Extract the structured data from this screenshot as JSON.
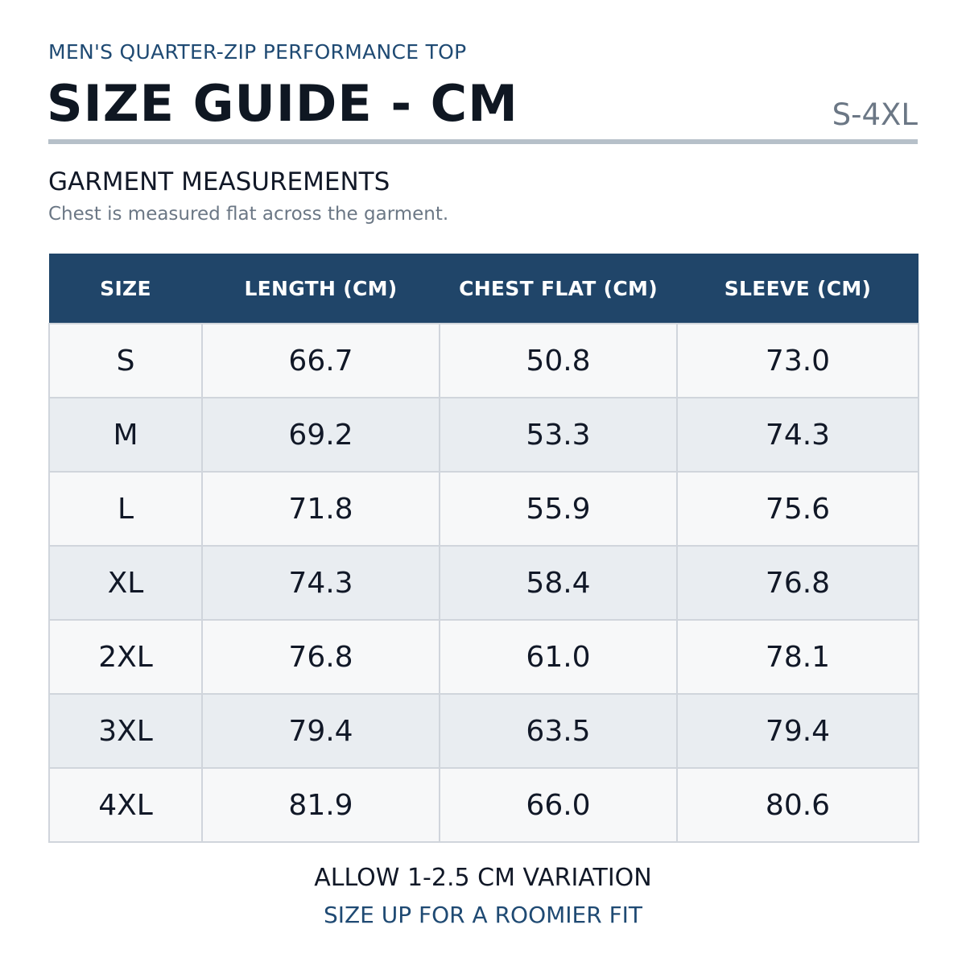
{
  "header": {
    "product": "MEN'S QUARTER-ZIP PERFORMANCE TOP",
    "title": "SIZE GUIDE - CM",
    "size_range": "S-4XL"
  },
  "section": {
    "title": "GARMENT MEASUREMENTS",
    "note": "Chest is measured flat across the garment."
  },
  "table": {
    "columns": [
      "SIZE",
      "LENGTH (CM)",
      "CHEST FLAT (CM)",
      "SLEEVE (CM)"
    ],
    "rows": [
      [
        "S",
        "66.7",
        "50.8",
        "73.0"
      ],
      [
        "M",
        "69.2",
        "53.3",
        "74.3"
      ],
      [
        "L",
        "71.8",
        "55.9",
        "75.6"
      ],
      [
        "XL",
        "74.3",
        "58.4",
        "76.8"
      ],
      [
        "2XL",
        "76.8",
        "61.0",
        "78.1"
      ],
      [
        "3XL",
        "79.4",
        "63.5",
        "79.4"
      ],
      [
        "4XL",
        "81.9",
        "66.0",
        "80.6"
      ]
    ]
  },
  "footer": {
    "note": "ALLOW 1-2.5 CM VARIATION",
    "tip": "SIZE UP FOR A ROOMIER FIT"
  },
  "colors": {
    "header_bg": "#204569",
    "accent_text": "#1f4a73",
    "muted_text": "#6b7785",
    "rule": "#b6c0c9",
    "row_light": "#f7f8f9",
    "row_shaded": "#e9edf1",
    "cell_border": "#d0d5dc"
  }
}
